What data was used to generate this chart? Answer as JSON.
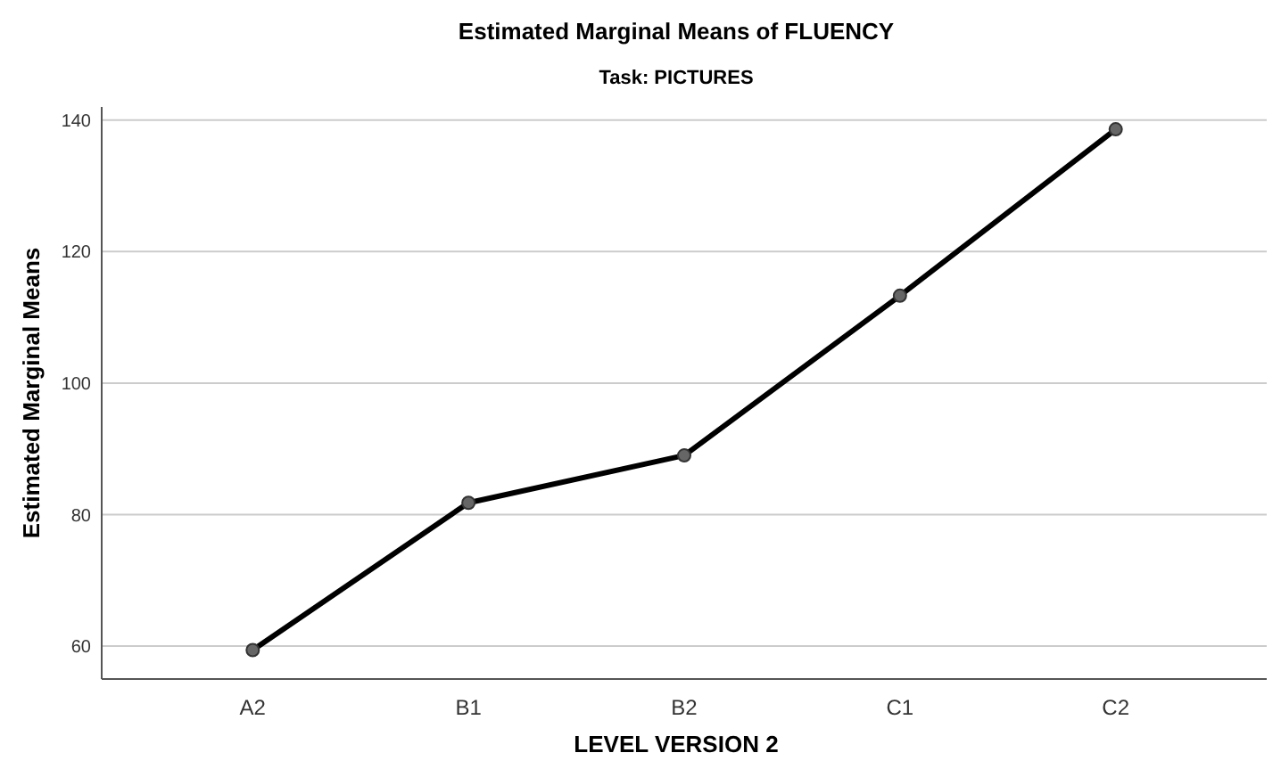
{
  "chart_data": {
    "type": "line",
    "title": "Estimated Marginal Means of FLUENCY",
    "subtitle": "Task: PICTURES",
    "xlabel": "LEVEL VERSION 2",
    "ylabel": "Estimated Marginal Means",
    "categories": [
      "A2",
      "B1",
      "B2",
      "C1",
      "C2"
    ],
    "series": [
      {
        "color": "#000000",
        "values": [
          59.4,
          81.8,
          89.0,
          113.3,
          138.6
        ]
      }
    ],
    "ylim": [
      55,
      142
    ],
    "yticks": [
      60,
      80,
      100,
      120,
      140
    ],
    "grid": "y",
    "marker": "circle",
    "line_style": "solid"
  }
}
